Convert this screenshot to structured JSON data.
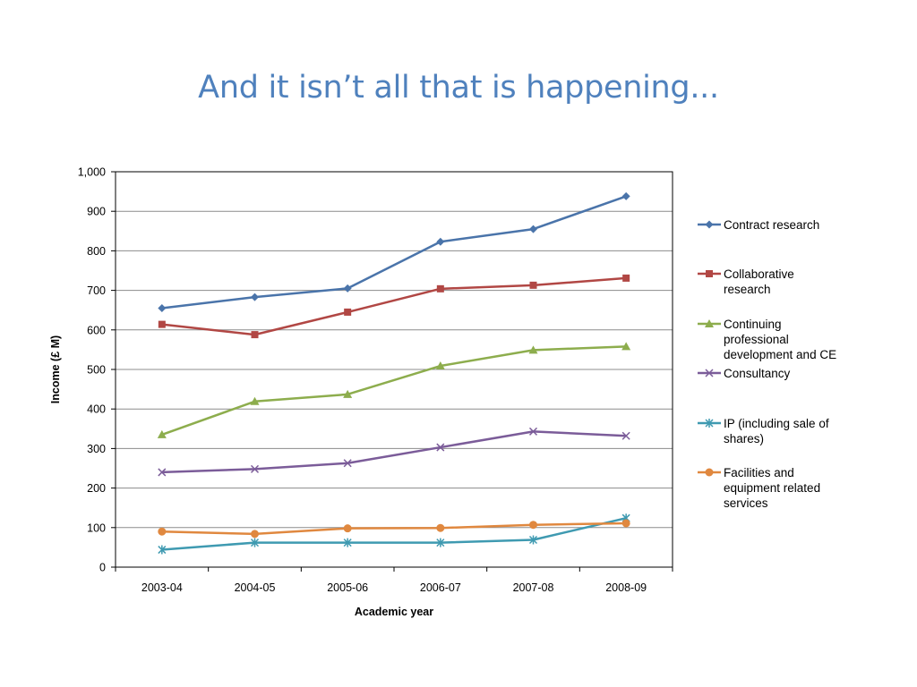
{
  "slide": {
    "title": "And it isn’t all that is happening..."
  },
  "chart_data": {
    "type": "line",
    "title": "",
    "xlabel": "Academic year",
    "ylabel": "Income (£ M)",
    "ylim": [
      0,
      1000
    ],
    "y_ticks": [
      0,
      100,
      200,
      300,
      400,
      500,
      600,
      700,
      800,
      900,
      1000
    ],
    "y_tick_labels": [
      "0",
      "100",
      "200",
      "300",
      "400",
      "500",
      "600",
      "700",
      "800",
      "900",
      "1,000"
    ],
    "grid": true,
    "legend_position": "right",
    "categories": [
      "2003-04",
      "2004-05",
      "2005-06",
      "2006-07",
      "2007-08",
      "2008-09"
    ],
    "series": [
      {
        "name": "Contract research",
        "legend_lines": [
          "Contract research"
        ],
        "color": "#4a74aa",
        "marker": "diamond",
        "values": [
          655,
          683,
          705,
          823,
          855,
          938
        ]
      },
      {
        "name": "Collaborative research",
        "legend_lines": [
          "Collaborative",
          "research"
        ],
        "color": "#b14744",
        "marker": "square",
        "values": [
          614,
          588,
          645,
          704,
          713,
          731
        ]
      },
      {
        "name": "Continuing professional development and CE",
        "legend_lines": [
          "Continuing",
          "professional",
          "development and CE"
        ],
        "color": "#8dad4d",
        "marker": "triangle",
        "values": [
          335,
          419,
          437,
          509,
          549,
          558
        ]
      },
      {
        "name": "Consultancy",
        "legend_lines": [
          "Consultancy"
        ],
        "color": "#7b5c99",
        "marker": "x",
        "values": [
          240,
          248,
          263,
          303,
          343,
          332
        ]
      },
      {
        "name": "IP (including sale of shares)",
        "legend_lines": [
          "IP (including sale of",
          "shares)"
        ],
        "color": "#3f9ab1",
        "marker": "star",
        "values": [
          44,
          62,
          62,
          62,
          69,
          124
        ]
      },
      {
        "name": "Facilities and equipment related services",
        "legend_lines": [
          "Facilities and",
          "equipment related",
          "services"
        ],
        "color": "#e0883f",
        "marker": "circle",
        "values": [
          90,
          84,
          98,
          99,
          107,
          111
        ]
      }
    ]
  }
}
